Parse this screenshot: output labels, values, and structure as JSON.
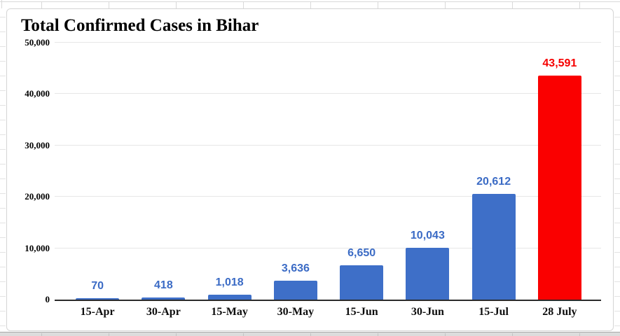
{
  "chart_data": {
    "type": "bar",
    "title": "Total Confirmed Cases in Bihar",
    "categories": [
      "15-Apr",
      "30-Apr",
      "15-May",
      "30-May",
      "15-Jun",
      "30-Jun",
      "15-Jul",
      "28 July"
    ],
    "values": [
      70,
      418,
      1018,
      3636,
      6650,
      10043,
      20612,
      43591
    ],
    "value_labels": [
      "70",
      "418",
      "1,018",
      "3,636",
      "6,650",
      "10,043",
      "20,612",
      "43,591"
    ],
    "highlight_index": 7,
    "xlabel": "",
    "ylabel": "",
    "ylim": [
      0,
      50000
    ],
    "yticks": [
      0,
      10000,
      20000,
      30000,
      40000,
      50000
    ],
    "ytick_labels": [
      "0",
      "10,000",
      "20,000",
      "30,000",
      "40,000",
      "50,000"
    ],
    "grid": true,
    "legend": "none",
    "colors": {
      "bar": "#3E6FC8",
      "bar_highlight": "#FA0000",
      "value_label": "#3B6BC5",
      "value_label_highlight": "#F60000",
      "gridline": "#E7E7E7",
      "axis": "#2B2B2B",
      "tick_label": "#000000",
      "title": "#000000",
      "chart_border": "#D5D5D5",
      "sheet_gridline": "#D9D9D9",
      "bottom_strip": "#DCDCDC"
    }
  }
}
